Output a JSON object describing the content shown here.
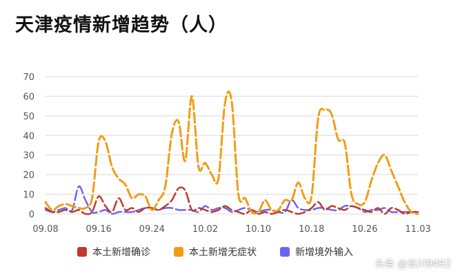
{
  "title": "天津疫情新增趋势（人）",
  "watermark": "头条 @长川9492",
  "chart_data": {
    "type": "line",
    "title": "天津疫情新增趋势（人）",
    "xlabel": "",
    "ylabel": "",
    "ylim": [
      0,
      70
    ],
    "yticks": [
      0,
      10,
      20,
      30,
      40,
      50,
      60,
      70
    ],
    "grid": true,
    "legend_position": "bottom",
    "line_style": "dashed",
    "x": [
      "09.08",
      "09.09",
      "09.10",
      "09.11",
      "09.12",
      "09.13",
      "09.14",
      "09.15",
      "09.16",
      "09.17",
      "09.18",
      "09.19",
      "09.20",
      "09.21",
      "09.22",
      "09.23",
      "09.24",
      "09.25",
      "09.26",
      "09.27",
      "09.28",
      "09.29",
      "09.30",
      "10.01",
      "10.02",
      "10.03",
      "10.04",
      "10.05",
      "10.06",
      "10.07",
      "10.08",
      "10.09",
      "10.10",
      "10.11",
      "10.12",
      "10.13",
      "10.14",
      "10.15",
      "10.16",
      "10.17",
      "10.18",
      "10.19",
      "10.20",
      "10.21",
      "10.22",
      "10.23",
      "10.24",
      "10.25",
      "10.26",
      "10.27",
      "10.28",
      "10.29",
      "10.30",
      "10.31",
      "11.01",
      "11.02",
      "11.03"
    ],
    "xtick_labels": [
      "09.08",
      "09.16",
      "09.24",
      "10.02",
      "10.10",
      "10.18",
      "10.26",
      "11.03"
    ],
    "series": [
      {
        "name": "本土新增确诊",
        "color": "#c0392b",
        "values": [
          3,
          1,
          1,
          2,
          1,
          2,
          0,
          1,
          9,
          4,
          1,
          8,
          2,
          3,
          1,
          3,
          3,
          2,
          4,
          7,
          13,
          12,
          2,
          3,
          2,
          1,
          2,
          4,
          2,
          1,
          0,
          2,
          0,
          1,
          0,
          1,
          2,
          1,
          0,
          1,
          3,
          6,
          2,
          4,
          3,
          2,
          4,
          3,
          2,
          1,
          3,
          0,
          3,
          2,
          0,
          1,
          1
        ]
      },
      {
        "name": "本土新增无症状",
        "color": "#f39c12",
        "values": [
          6,
          2,
          4,
          5,
          4,
          3,
          3,
          8,
          37,
          37,
          24,
          18,
          15,
          8,
          10,
          9,
          2,
          7,
          14,
          41,
          47,
          27,
          60,
          24,
          26,
          20,
          18,
          57,
          57,
          10,
          8,
          1,
          1,
          7,
          2,
          2,
          7,
          7,
          16,
          8,
          9,
          49,
          53,
          51,
          38,
          36,
          10,
          5,
          6,
          17,
          26,
          30,
          22,
          14,
          6,
          1,
          0
        ]
      },
      {
        "name": "新增境外输入",
        "color": "#6c63f5",
        "values": [
          2,
          1,
          2,
          3,
          2,
          14,
          7,
          1,
          1,
          2,
          0,
          1,
          1,
          1,
          2,
          3,
          3,
          2,
          3,
          3,
          2,
          2,
          2,
          1,
          4,
          2,
          3,
          3,
          1,
          2,
          3,
          2,
          1,
          2,
          2,
          1,
          1,
          7,
          3,
          2,
          2,
          3,
          3,
          2,
          2,
          4,
          4,
          3,
          1,
          2,
          2,
          3,
          1,
          1,
          1,
          1,
          1
        ]
      }
    ]
  }
}
